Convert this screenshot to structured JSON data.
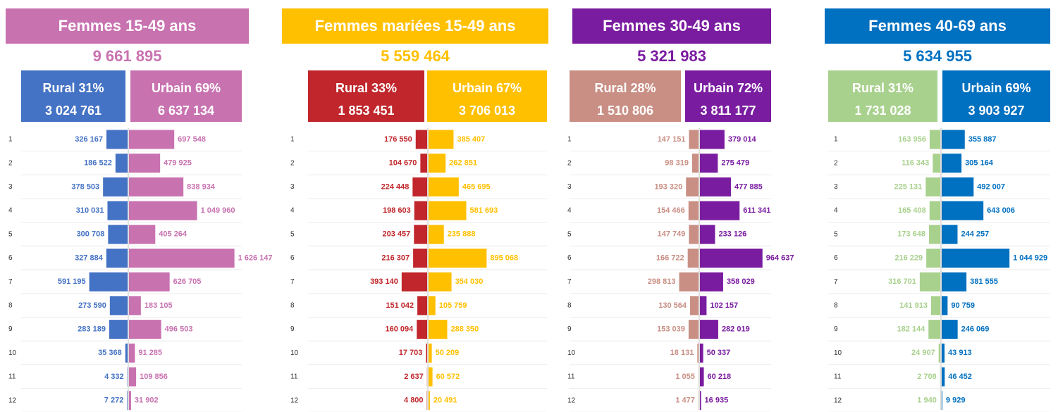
{
  "chart_data": [
    {
      "type": "butterfly",
      "title": "Femmes 15-49 ans",
      "total": 9661895,
      "total_label": "9 661 895",
      "categories": [
        "1",
        "2",
        "3",
        "4",
        "5",
        "6",
        "7",
        "8",
        "9",
        "10",
        "11",
        "12"
      ],
      "series": [
        {
          "name": "Rural 31%",
          "total": 3024761,
          "total_label": "3 024 761",
          "color": "#4472c4",
          "label_color": "#4472c4",
          "values": [
            326167,
            186522,
            378503,
            310031,
            300708,
            327884,
            591195,
            273590,
            283189,
            35368,
            4332,
            7272
          ],
          "value_labels": [
            "326 167",
            "186 522",
            "378 503",
            "310 031",
            "300 708",
            "327 884",
            "591 195",
            "273 590",
            "283 189",
            "35 368",
            "4 332",
            "7 272"
          ]
        },
        {
          "name": "Urbain 69%",
          "total": 6637134,
          "total_label": "6 637 134",
          "color": "#c872b0",
          "label_color": "#c872b0",
          "values": [
            697548,
            479925,
            838934,
            1049960,
            405264,
            1626147,
            626705,
            183105,
            496503,
            91285,
            109856,
            31902
          ],
          "value_labels": [
            "697 548",
            "479 925",
            "838 934",
            "1 049 960",
            "405 264",
            "1 626 147",
            "626 705",
            "183 105",
            "496 503",
            "91 285",
            "109 856",
            "31 902"
          ]
        }
      ]
    },
    {
      "type": "butterfly",
      "title": "Femmes mariées 15-49 ans",
      "total": 5559464,
      "total_label": "5 559 464",
      "categories": [
        "1",
        "2",
        "3",
        "4",
        "5",
        "6",
        "7",
        "8",
        "9",
        "10",
        "11",
        "12"
      ],
      "series": [
        {
          "name": "Rural 33%",
          "total": 1853451,
          "total_label": "1 853 451",
          "color": "#c0262b",
          "label_color": "#c0262b",
          "values": [
            176550,
            104670,
            224448,
            198603,
            203457,
            216307,
            393140,
            151042,
            160094,
            17703,
            2637,
            4800
          ],
          "value_labels": [
            "176 550",
            "104 670",
            "224 448",
            "198 603",
            "203 457",
            "216 307",
            "393 140",
            "151 042",
            "160 094",
            "17 703",
            "2 637",
            "4 800"
          ]
        },
        {
          "name": "Urbain 67%",
          "total": 3706013,
          "total_label": "3 706 013",
          "color": "#ffc000",
          "label_color": "#ffc000",
          "values": [
            385407,
            262851,
            465695,
            581693,
            235888,
            895068,
            354030,
            105759,
            288350,
            50209,
            60572,
            20491
          ],
          "value_labels": [
            "385 407",
            "262 851",
            "465 695",
            "581 693",
            "235 888",
            "895 068",
            "354 030",
            "105 759",
            "288 350",
            "50 209",
            "60 572",
            "20 491"
          ]
        }
      ]
    },
    {
      "type": "butterfly",
      "title": "Femmes 30-49 ans",
      "total": 5321983,
      "total_label": "5 321 983",
      "categories": [
        "1",
        "2",
        "3",
        "4",
        "5",
        "6",
        "7",
        "8",
        "9",
        "10",
        "11",
        "12"
      ],
      "series": [
        {
          "name": "Rural 28%",
          "total": 1510806,
          "total_label": "1 510 806",
          "color": "#c98f84",
          "label_color": "#c98f84",
          "values": [
            147151,
            98319,
            193320,
            154466,
            147749,
            166722,
            298813,
            130564,
            153039,
            18131,
            1055,
            1477
          ],
          "value_labels": [
            "147 151",
            "98 319",
            "193 320",
            "154 466",
            "147 749",
            "166 722",
            "298 813",
            "130 564",
            "153 039",
            "18 131",
            "1 055",
            "1 477"
          ]
        },
        {
          "name": "Urbain 72%",
          "total": 3811177,
          "total_label": "3 811 177",
          "color": "#7a1ca0",
          "label_color": "#7a1ca0",
          "values": [
            379014,
            275479,
            477885,
            611341,
            233126,
            964637,
            358029,
            102157,
            282019,
            50337,
            60218,
            16935
          ],
          "value_labels": [
            "379 014",
            "275 479",
            "477 885",
            "611 341",
            "233 126",
            "964 637",
            "358 029",
            "102 157",
            "282 019",
            "50 337",
            "60 218",
            "16 935"
          ]
        }
      ]
    },
    {
      "type": "butterfly",
      "title": "Femmes 40-69 ans",
      "total": 5634955,
      "total_label": "5 634 955",
      "categories": [
        "1",
        "2",
        "3",
        "4",
        "5",
        "6",
        "7",
        "8",
        "9",
        "10",
        "11",
        "12"
      ],
      "series": [
        {
          "name": "Rural 31%",
          "total": 1731028,
          "total_label": "1 731 028",
          "color": "#a9d18e",
          "label_color": "#a9d18e",
          "values": [
            163956,
            116343,
            225131,
            165408,
            173648,
            216229,
            316701,
            141913,
            182144,
            24907,
            2708,
            1940
          ],
          "value_labels": [
            "163 956",
            "116 343",
            "225 131",
            "165 408",
            "173 648",
            "216 229",
            "316 701",
            "141 913",
            "182 144",
            "24 907",
            "2 708",
            "1 940"
          ]
        },
        {
          "name": "Urbain 69%",
          "total": 3903927,
          "total_label": "3 903 927",
          "color": "#0070c0",
          "label_color": "#0070c0",
          "values": [
            355887,
            305164,
            492007,
            643006,
            244257,
            1044929,
            381555,
            90759,
            246069,
            43913,
            46452,
            9929
          ],
          "value_labels": [
            "355 887",
            "305 164",
            "492 007",
            "643 006",
            "244 257",
            "1 044 929",
            "381 555",
            "90 759",
            "246 069",
            "43 913",
            "46 452",
            "9 929"
          ]
        }
      ]
    }
  ]
}
